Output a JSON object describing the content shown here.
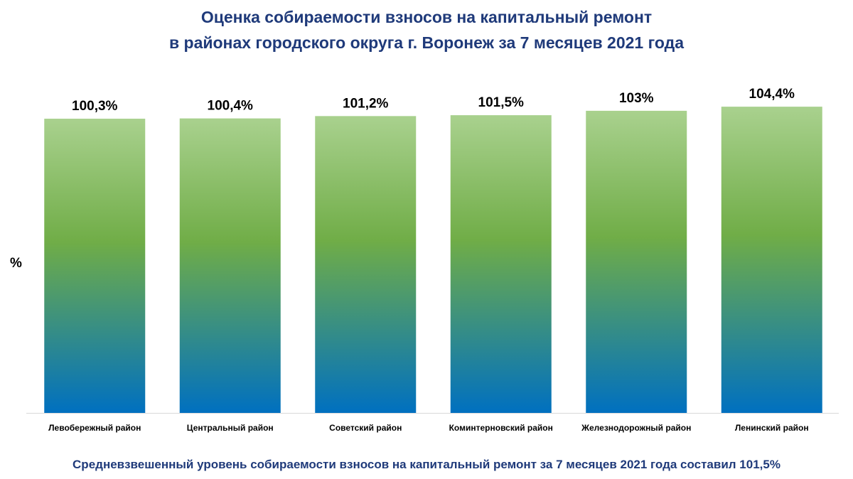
{
  "title_lines": [
    "Оценка собираемости взносов на капитальный ремонт",
    "в районах городского округа г. Воронеж за 7 месяцев 2021 года"
  ],
  "ylabel": "%",
  "footnote": "Средневзвешенный уровень собираемости взносов на капитальный ремонт за 7 месяцев 2021 года составил 101,5%",
  "colors": {
    "title": "#1f3a7a",
    "bar_top": "#a9d18e",
    "bar_mid": "#70ad47",
    "bar_bottom": "#0070c0",
    "axis": "#d9d9d9"
  },
  "chart_data": {
    "type": "bar",
    "title": "Оценка собираемости взносов на капитальный ремонт в районах городского округа г. Воронеж за 7 месяцев 2021 года",
    "xlabel": "",
    "ylabel": "%",
    "categories": [
      "Левобережный район",
      "Центральный район",
      "Советский район",
      "Коминтерновский район",
      "Железнодорожный район",
      "Ленинский район"
    ],
    "values": [
      100.3,
      100.4,
      101.2,
      101.5,
      103,
      104.4
    ],
    "value_labels": [
      "100,3%",
      "100,4%",
      "101,2%",
      "101,5%",
      "103%",
      "104,4%"
    ],
    "ylim": [
      0,
      110
    ],
    "grid": false,
    "legend": "none"
  }
}
